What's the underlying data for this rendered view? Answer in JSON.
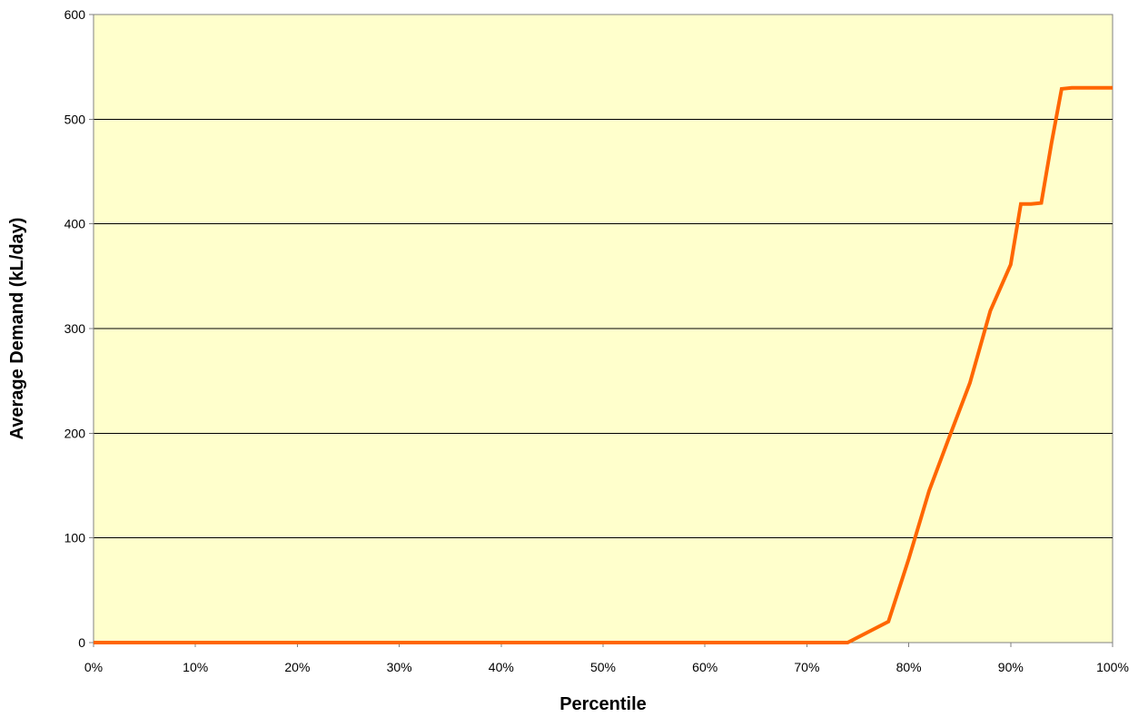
{
  "chart_data": {
    "type": "line",
    "title": "",
    "xlabel": "Percentile",
    "ylabel": "Average Demand (kL/day)",
    "xlim": [
      0,
      100
    ],
    "ylim": [
      0,
      600
    ],
    "x_ticks": [
      0,
      10,
      20,
      30,
      40,
      50,
      60,
      70,
      80,
      90,
      100
    ],
    "x_tick_labels": [
      "0%",
      "10%",
      "20%",
      "30%",
      "40%",
      "50%",
      "60%",
      "70%",
      "80%",
      "90%",
      "100%"
    ],
    "y_ticks": [
      0,
      100,
      200,
      300,
      400,
      500,
      600
    ],
    "y_tick_labels": [
      "0",
      "100",
      "200",
      "300",
      "400",
      "500",
      "600"
    ],
    "grid": {
      "horizontal": true,
      "vertical": false
    },
    "legend": "none",
    "colors": {
      "plot_background": "#ffffcc",
      "line": "#ff6600",
      "gridline": "#000000",
      "axis": "#808080"
    },
    "series": [
      {
        "x": [
          0,
          74,
          78,
          80,
          82,
          84,
          86,
          88,
          90,
          91,
          92,
          93,
          94,
          95,
          96,
          100
        ],
        "y": [
          0,
          0,
          20,
          80,
          145,
          197,
          248,
          317,
          361,
          419,
          419,
          420,
          477,
          529,
          530,
          530
        ]
      }
    ]
  }
}
